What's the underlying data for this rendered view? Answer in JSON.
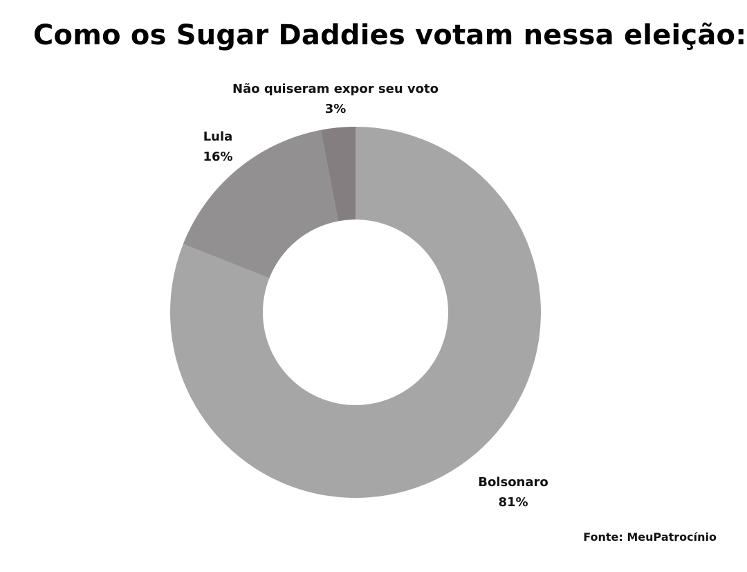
{
  "title": "Como os Sugar Daddies votam nessa eleição:",
  "source": "Fonte: MeuPatrocínio",
  "colors": {
    "bolsonaro": "#a6a6a6",
    "lula": "#939092",
    "nao": "#857e80",
    "background": "#ffffff"
  },
  "chart_data": {
    "type": "pie",
    "donut": true,
    "title": "Como os Sugar Daddies votam nessa eleição:",
    "slices": [
      {
        "name": "Bolsonaro",
        "value": 81,
        "label": "81%"
      },
      {
        "name": "Lula",
        "value": 16,
        "label": "16%"
      },
      {
        "name": "Não quiseram expor seu voto",
        "value": 3,
        "label": "3%"
      }
    ]
  }
}
